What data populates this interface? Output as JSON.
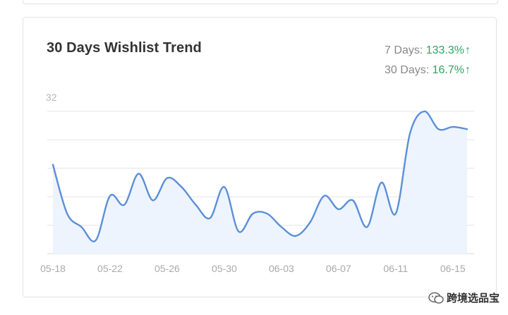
{
  "card": {
    "title": "30 Days Wishlist Trend",
    "stats": [
      {
        "label": "7 Days: ",
        "value": "133.3%",
        "arrow": "↑",
        "color": "#2aa561"
      },
      {
        "label": "30 Days: ",
        "value": "16.7%",
        "arrow": "↑",
        "color": "#2aa561"
      }
    ]
  },
  "chart_data": {
    "type": "area",
    "title": "30 Days Wishlist Trend",
    "xlabel": "",
    "ylabel": "",
    "ylim": [
      0,
      32
    ],
    "y_tick_labels": [
      "32"
    ],
    "grid": true,
    "line_color": "#5b8fd9",
    "fill_color": "#eef4fd",
    "x_tick_labels": [
      "05-18",
      "05-22",
      "05-26",
      "05-30",
      "06-03",
      "06-07",
      "06-11",
      "06-15"
    ],
    "series": [
      {
        "x": [
          "05-18",
          "05-19",
          "05-20",
          "05-21",
          "05-22",
          "05-23",
          "05-24",
          "05-25",
          "05-26",
          "05-27",
          "05-28",
          "05-29",
          "05-30",
          "05-31",
          "06-01",
          "06-02",
          "06-03",
          "06-04",
          "06-05",
          "06-06",
          "06-07",
          "06-08",
          "06-09",
          "06-10",
          "06-11",
          "06-12",
          "06-13",
          "06-14",
          "06-15",
          "06-16"
        ],
        "values": [
          20,
          9,
          6,
          3,
          13,
          11,
          18,
          12,
          17,
          15,
          11,
          8,
          15,
          5,
          9,
          9,
          6,
          4,
          7,
          13,
          10,
          12,
          6,
          16,
          9,
          27,
          32,
          28,
          28.5,
          28
        ]
      }
    ]
  },
  "watermark": {
    "text": "跨境选品宝",
    "icon": "wechat-icon"
  }
}
